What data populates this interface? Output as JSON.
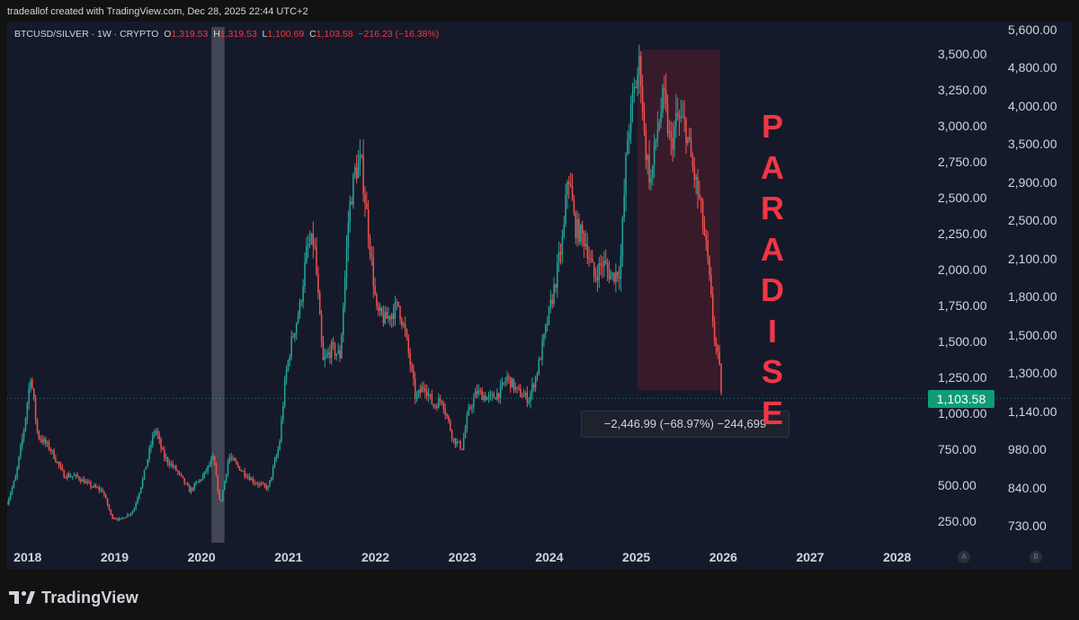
{
  "attribution": "tradeallof created with TradingView.com, Dec 28, 2025 22:44 UTC+2",
  "chart_data": {
    "type": "candlestick",
    "symbol_line": "BTCUSD/SILVER · 1W · CRYPTO",
    "ohlc": {
      "open_label": "O",
      "open": "1,319.53",
      "high_label": "H",
      "high": "1,319.53",
      "low_label": "L",
      "low": "1,100.69",
      "close_label": "C",
      "close": "1,103.58",
      "change": "−216.23 (−16.38%)"
    },
    "x_ticks": [
      "2018",
      "2019",
      "2020",
      "2021",
      "2022",
      "2023",
      "2024",
      "2025",
      "2026",
      "2027",
      "2028"
    ],
    "x_range": [
      2017.75,
      2028.35
    ],
    "y_left_ticks": [
      "3,500.00",
      "3,250.00",
      "3,000.00",
      "2,750.00",
      "2,500.00",
      "2,250.00",
      "2,000.00",
      "1,750.00",
      "1,500.00",
      "1,250.00",
      "1,000.00",
      "750.00",
      "500.00",
      "250.00"
    ],
    "y_right_ticks": [
      "5,600.00",
      "4,800.00",
      "4,000.00",
      "3,500.00",
      "2,900.00",
      "2,500.00",
      "2,100.00",
      "1,800.00",
      "1,500.00",
      "1,300.00",
      "1,140.00",
      "980.00",
      "840.00",
      "730.00"
    ],
    "y_range": [
      100,
      3600
    ],
    "last_price": "1,103.58",
    "last_price_value": 1103.58,
    "measurement": "−2,446.99 (−68.97%) −244,699",
    "annotation": [
      "P",
      "A",
      "R",
      "A",
      "D",
      "I",
      "S",
      "E"
    ],
    "colors": {
      "up": "#26a69a",
      "down": "#ef5350",
      "background": "#151a2b",
      "annotation": "#f23645",
      "highlight_red": "#3b1c2b",
      "highlight_gray": "#4a4f5c"
    },
    "highlights": [
      {
        "x_start": 2020.1,
        "x_end": 2020.25,
        "color": "gray"
      },
      {
        "x_start": 2025.0,
        "x_end": 2025.95,
        "y_start": 1160,
        "y_end": 3530,
        "color": "red"
      }
    ],
    "anchors": [
      [
        2017.75,
        380
      ],
      [
        2017.85,
        560
      ],
      [
        2017.95,
        920
      ],
      [
        2018.02,
        1270
      ],
      [
        2018.1,
        850
      ],
      [
        2018.25,
        750
      ],
      [
        2018.4,
        570
      ],
      [
        2018.55,
        560
      ],
      [
        2018.7,
        500
      ],
      [
        2018.85,
        460
      ],
      [
        2018.95,
        280
      ],
      [
        2019.05,
        260
      ],
      [
        2019.2,
        320
      ],
      [
        2019.3,
        520
      ],
      [
        2019.45,
        900
      ],
      [
        2019.55,
        700
      ],
      [
        2019.7,
        600
      ],
      [
        2019.85,
        460
      ],
      [
        2020.0,
        560
      ],
      [
        2020.12,
        690
      ],
      [
        2020.2,
        360
      ],
      [
        2020.3,
        700
      ],
      [
        2020.45,
        600
      ],
      [
        2020.6,
        520
      ],
      [
        2020.75,
        480
      ],
      [
        2020.88,
        780
      ],
      [
        2020.95,
        1250
      ],
      [
        2021.02,
        1500
      ],
      [
        2021.12,
        1750
      ],
      [
        2021.2,
        2150
      ],
      [
        2021.28,
        2200
      ],
      [
        2021.38,
        1350
      ],
      [
        2021.48,
        1450
      ],
      [
        2021.58,
        1400
      ],
      [
        2021.68,
        2400
      ],
      [
        2021.75,
        2680
      ],
      [
        2021.82,
        2750
      ],
      [
        2021.9,
        2300
      ],
      [
        2022.0,
        1700
      ],
      [
        2022.1,
        1650
      ],
      [
        2022.25,
        1750
      ],
      [
        2022.33,
        1550
      ],
      [
        2022.45,
        1100
      ],
      [
        2022.55,
        1200
      ],
      [
        2022.65,
        1050
      ],
      [
        2022.75,
        1100
      ],
      [
        2022.88,
        820
      ],
      [
        2022.98,
        760
      ],
      [
        2023.05,
        1000
      ],
      [
        2023.15,
        1150
      ],
      [
        2023.3,
        1100
      ],
      [
        2023.42,
        1150
      ],
      [
        2023.5,
        1250
      ],
      [
        2023.62,
        1150
      ],
      [
        2023.75,
        1100
      ],
      [
        2023.85,
        1300
      ],
      [
        2023.95,
        1600
      ],
      [
        2024.05,
        1900
      ],
      [
        2024.15,
        2250
      ],
      [
        2024.2,
        2700
      ],
      [
        2024.28,
        2300
      ],
      [
        2024.4,
        2200
      ],
      [
        2024.5,
        1950
      ],
      [
        2024.6,
        2050
      ],
      [
        2024.7,
        1950
      ],
      [
        2024.8,
        2000
      ],
      [
        2024.88,
        2900
      ],
      [
        2024.95,
        3200
      ],
      [
        2025.03,
        3450
      ],
      [
        2025.08,
        2900
      ],
      [
        2025.15,
        2600
      ],
      [
        2025.22,
        2950
      ],
      [
        2025.3,
        3200
      ],
      [
        2025.38,
        2850
      ],
      [
        2025.45,
        3050
      ],
      [
        2025.55,
        3000
      ],
      [
        2025.62,
        2750
      ],
      [
        2025.72,
        2450
      ],
      [
        2025.8,
        2100
      ],
      [
        2025.88,
        1550
      ],
      [
        2025.94,
        1320
      ],
      [
        2025.97,
        1103.58
      ]
    ]
  }
}
